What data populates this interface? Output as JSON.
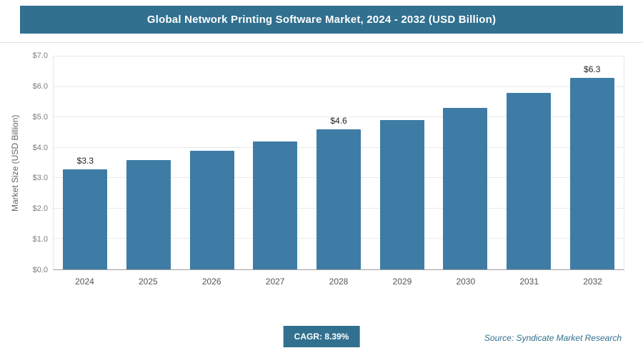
{
  "header": {
    "title": "Global Network Printing Software Market, 2024 - 2032 (USD Billion)"
  },
  "chart_data": {
    "type": "bar",
    "title": "Global Network Printing Software Market, 2024 - 2032 (USD Billion)",
    "categories": [
      "2024",
      "2025",
      "2026",
      "2027",
      "2028",
      "2029",
      "2030",
      "2031",
      "2032"
    ],
    "values": [
      3.3,
      3.6,
      3.9,
      4.2,
      4.6,
      4.9,
      5.3,
      5.8,
      6.3
    ],
    "data_labels": [
      "$3.3",
      null,
      null,
      null,
      "$4.6",
      null,
      null,
      null,
      "$6.3"
    ],
    "xlabel": "",
    "ylabel": "Market Size (USD Billion)",
    "ylim": [
      0,
      7
    ],
    "ytick_step": 1,
    "ytick_labels": [
      "$0.0",
      "$1.0",
      "$2.0",
      "$3.0",
      "$4.0",
      "$5.0",
      "$6.0",
      "$7.0"
    ],
    "grid": true,
    "legend": false,
    "bar_color": "#3e7ca6"
  },
  "footer": {
    "cagr_label": "CAGR: 8.39%",
    "source": "Source: Syndicate Market Research"
  },
  "colors": {
    "header_bg": "#31708f",
    "bar": "#3e7ca6",
    "accent": "#31708f"
  }
}
